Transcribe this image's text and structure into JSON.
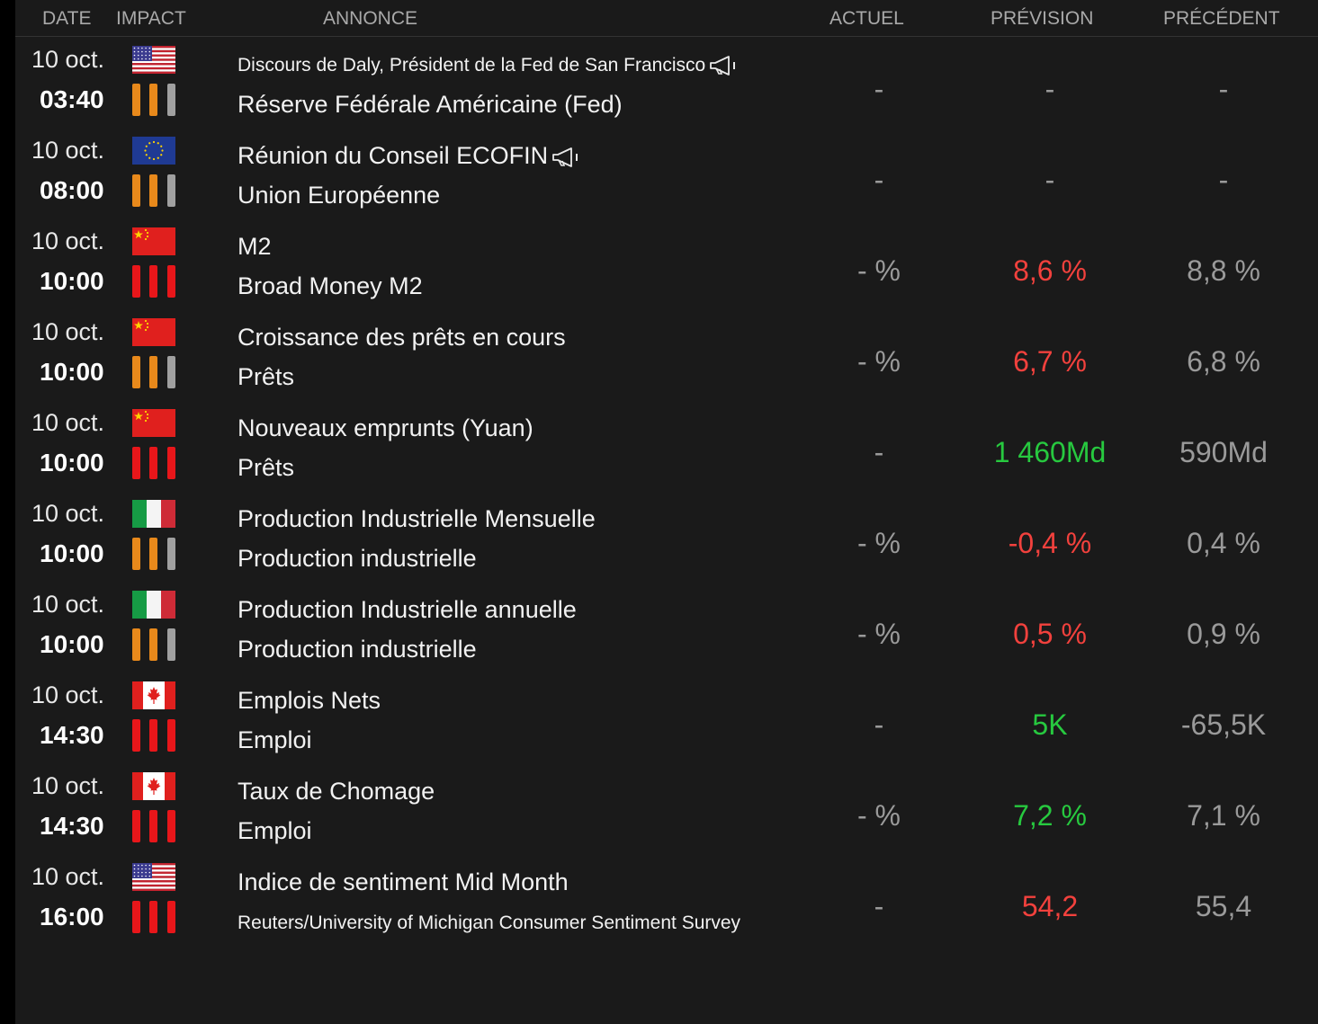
{
  "header": {
    "date": "DATE",
    "impact": "IMPACT",
    "annonce": "ANNONCE",
    "actuel": "ACTUEL",
    "prevision": "PRÉVISION",
    "precedent": "PRÉCÉDENT"
  },
  "colors": {
    "impact_high": "#e8161a",
    "impact_medium": "#e8891b",
    "impact_inactive": "#a0a0a0",
    "positive": "#27c93f",
    "negative": "#f2413d",
    "neutral": "#9a9a9a"
  },
  "events": [
    {
      "date": "10 oct.",
      "time": "03:40",
      "country": "us-flag-icon",
      "impact": "medium",
      "title": "Discours de Daly, Président de la Fed de San Francisco",
      "speech_icon": true,
      "subtitle": "Réserve Fédérale Américaine (Fed)",
      "actuel": "-",
      "prevision": "-",
      "precedent": "-",
      "prevision_color": "neutral"
    },
    {
      "date": "10 oct.",
      "time": "08:00",
      "country": "eu-flag-icon",
      "impact": "medium",
      "title": "Réunion du Conseil ECOFIN",
      "speech_icon": true,
      "subtitle": "Union Européenne",
      "actuel": "-",
      "prevision": "-",
      "precedent": "-",
      "prevision_color": "neutral"
    },
    {
      "date": "10 oct.",
      "time": "10:00",
      "country": "china-flag-icon",
      "impact": "high",
      "title": "M2",
      "speech_icon": false,
      "subtitle": "Broad Money M2",
      "actuel": "- %",
      "prevision": "8,6 %",
      "precedent": "8,8 %",
      "prevision_color": "negative"
    },
    {
      "date": "10 oct.",
      "time": "10:00",
      "country": "china-flag-icon",
      "impact": "medium",
      "title": "Croissance des prêts en cours",
      "speech_icon": false,
      "subtitle": "Prêts",
      "actuel": "- %",
      "prevision": "6,7 %",
      "precedent": "6,8 %",
      "prevision_color": "negative"
    },
    {
      "date": "10 oct.",
      "time": "10:00",
      "country": "china-flag-icon",
      "impact": "high",
      "title": "Nouveaux emprunts (Yuan)",
      "speech_icon": false,
      "subtitle": "Prêts",
      "actuel": "-",
      "prevision": "1 460Md",
      "precedent": "590Md",
      "prevision_color": "positive"
    },
    {
      "date": "10 oct.",
      "time": "10:00",
      "country": "italy-flag-icon",
      "impact": "medium",
      "title": "Production Industrielle Mensuelle",
      "speech_icon": false,
      "subtitle": "Production industrielle",
      "actuel": "- %",
      "prevision": "-0,4 %",
      "precedent": "0,4 %",
      "prevision_color": "negative"
    },
    {
      "date": "10 oct.",
      "time": "10:00",
      "country": "italy-flag-icon",
      "impact": "medium",
      "title": "Production Industrielle annuelle",
      "speech_icon": false,
      "subtitle": "Production industrielle",
      "actuel": "- %",
      "prevision": "0,5 %",
      "precedent": "0,9 %",
      "prevision_color": "negative"
    },
    {
      "date": "10 oct.",
      "time": "14:30",
      "country": "canada-flag-icon",
      "impact": "high",
      "title": "Emplois Nets",
      "speech_icon": false,
      "subtitle": "Emploi",
      "actuel": "-",
      "prevision": "5K",
      "precedent": "-65,5K",
      "prevision_color": "positive"
    },
    {
      "date": "10 oct.",
      "time": "14:30",
      "country": "canada-flag-icon",
      "impact": "high",
      "title": "Taux de Chomage",
      "speech_icon": false,
      "subtitle": "Emploi",
      "actuel": "- %",
      "prevision": "7,2 %",
      "precedent": "7,1 %",
      "prevision_color": "positive"
    },
    {
      "date": "10 oct.",
      "time": "16:00",
      "country": "us-flag-icon",
      "impact": "high",
      "title": "Indice de sentiment Mid Month",
      "speech_icon": false,
      "subtitle": "Reuters/University of Michigan Consumer Sentiment Survey",
      "actuel": "-",
      "prevision": "54,2",
      "precedent": "55,4",
      "prevision_color": "negative"
    }
  ]
}
